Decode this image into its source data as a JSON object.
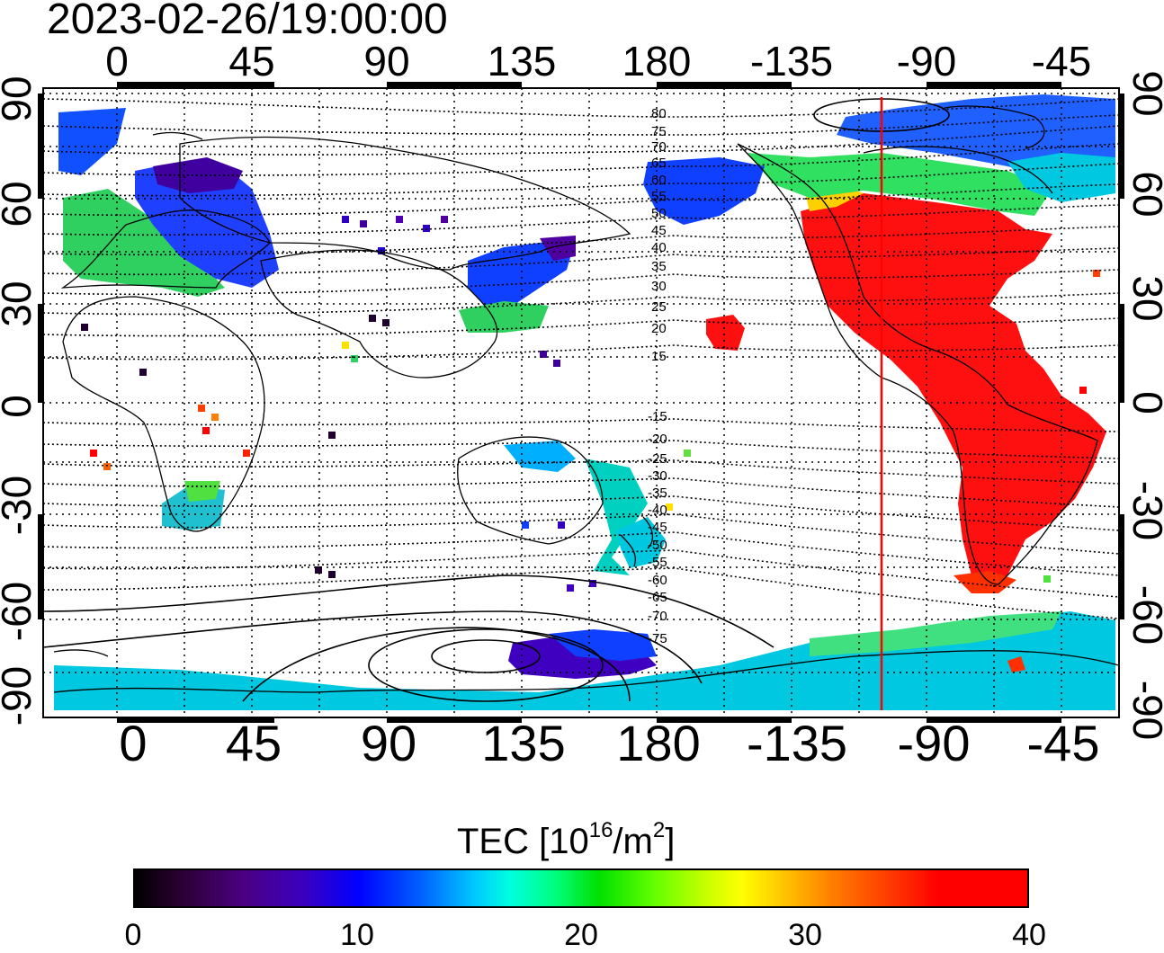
{
  "title": "2023-02-26/19:00:00",
  "map": {
    "top_lon_labels": [
      "0",
      "45",
      "90",
      "135",
      "180",
      "-135",
      "-90",
      "-45"
    ],
    "bottom_lon_labels": [
      "0",
      "45",
      "90",
      "135",
      "180",
      "-135",
      "-90",
      "-45"
    ],
    "left_lat_labels": [
      "90",
      "60",
      "30",
      "0",
      "-30",
      "-60",
      "-90"
    ],
    "right_lat_labels": [
      "90",
      "60",
      "30",
      "0",
      "-30",
      "-60",
      "-90"
    ],
    "contour_labels_north": [
      "80",
      "75",
      "70",
      "65",
      "60",
      "55",
      "50",
      "45",
      "40",
      "35",
      "30",
      "25",
      "20",
      "15"
    ],
    "contour_labels_south": [
      "-15",
      "-20",
      "-25",
      "-30",
      "-35",
      "-40",
      "-45",
      "-50",
      "-55",
      "-60",
      "-65",
      "-70",
      "-75"
    ],
    "terminator_color": "#ff0000"
  },
  "colorbar": {
    "title_main": "TEC  [10",
    "title_exp1": "16",
    "title_mid": "/m",
    "title_exp2": "2",
    "title_end": "]",
    "tick_labels": [
      "0",
      "10",
      "20",
      "30",
      "40"
    ],
    "min": 0,
    "max": 40,
    "colormap": "black-purple-blue-cyan-green-yellow-red"
  }
}
